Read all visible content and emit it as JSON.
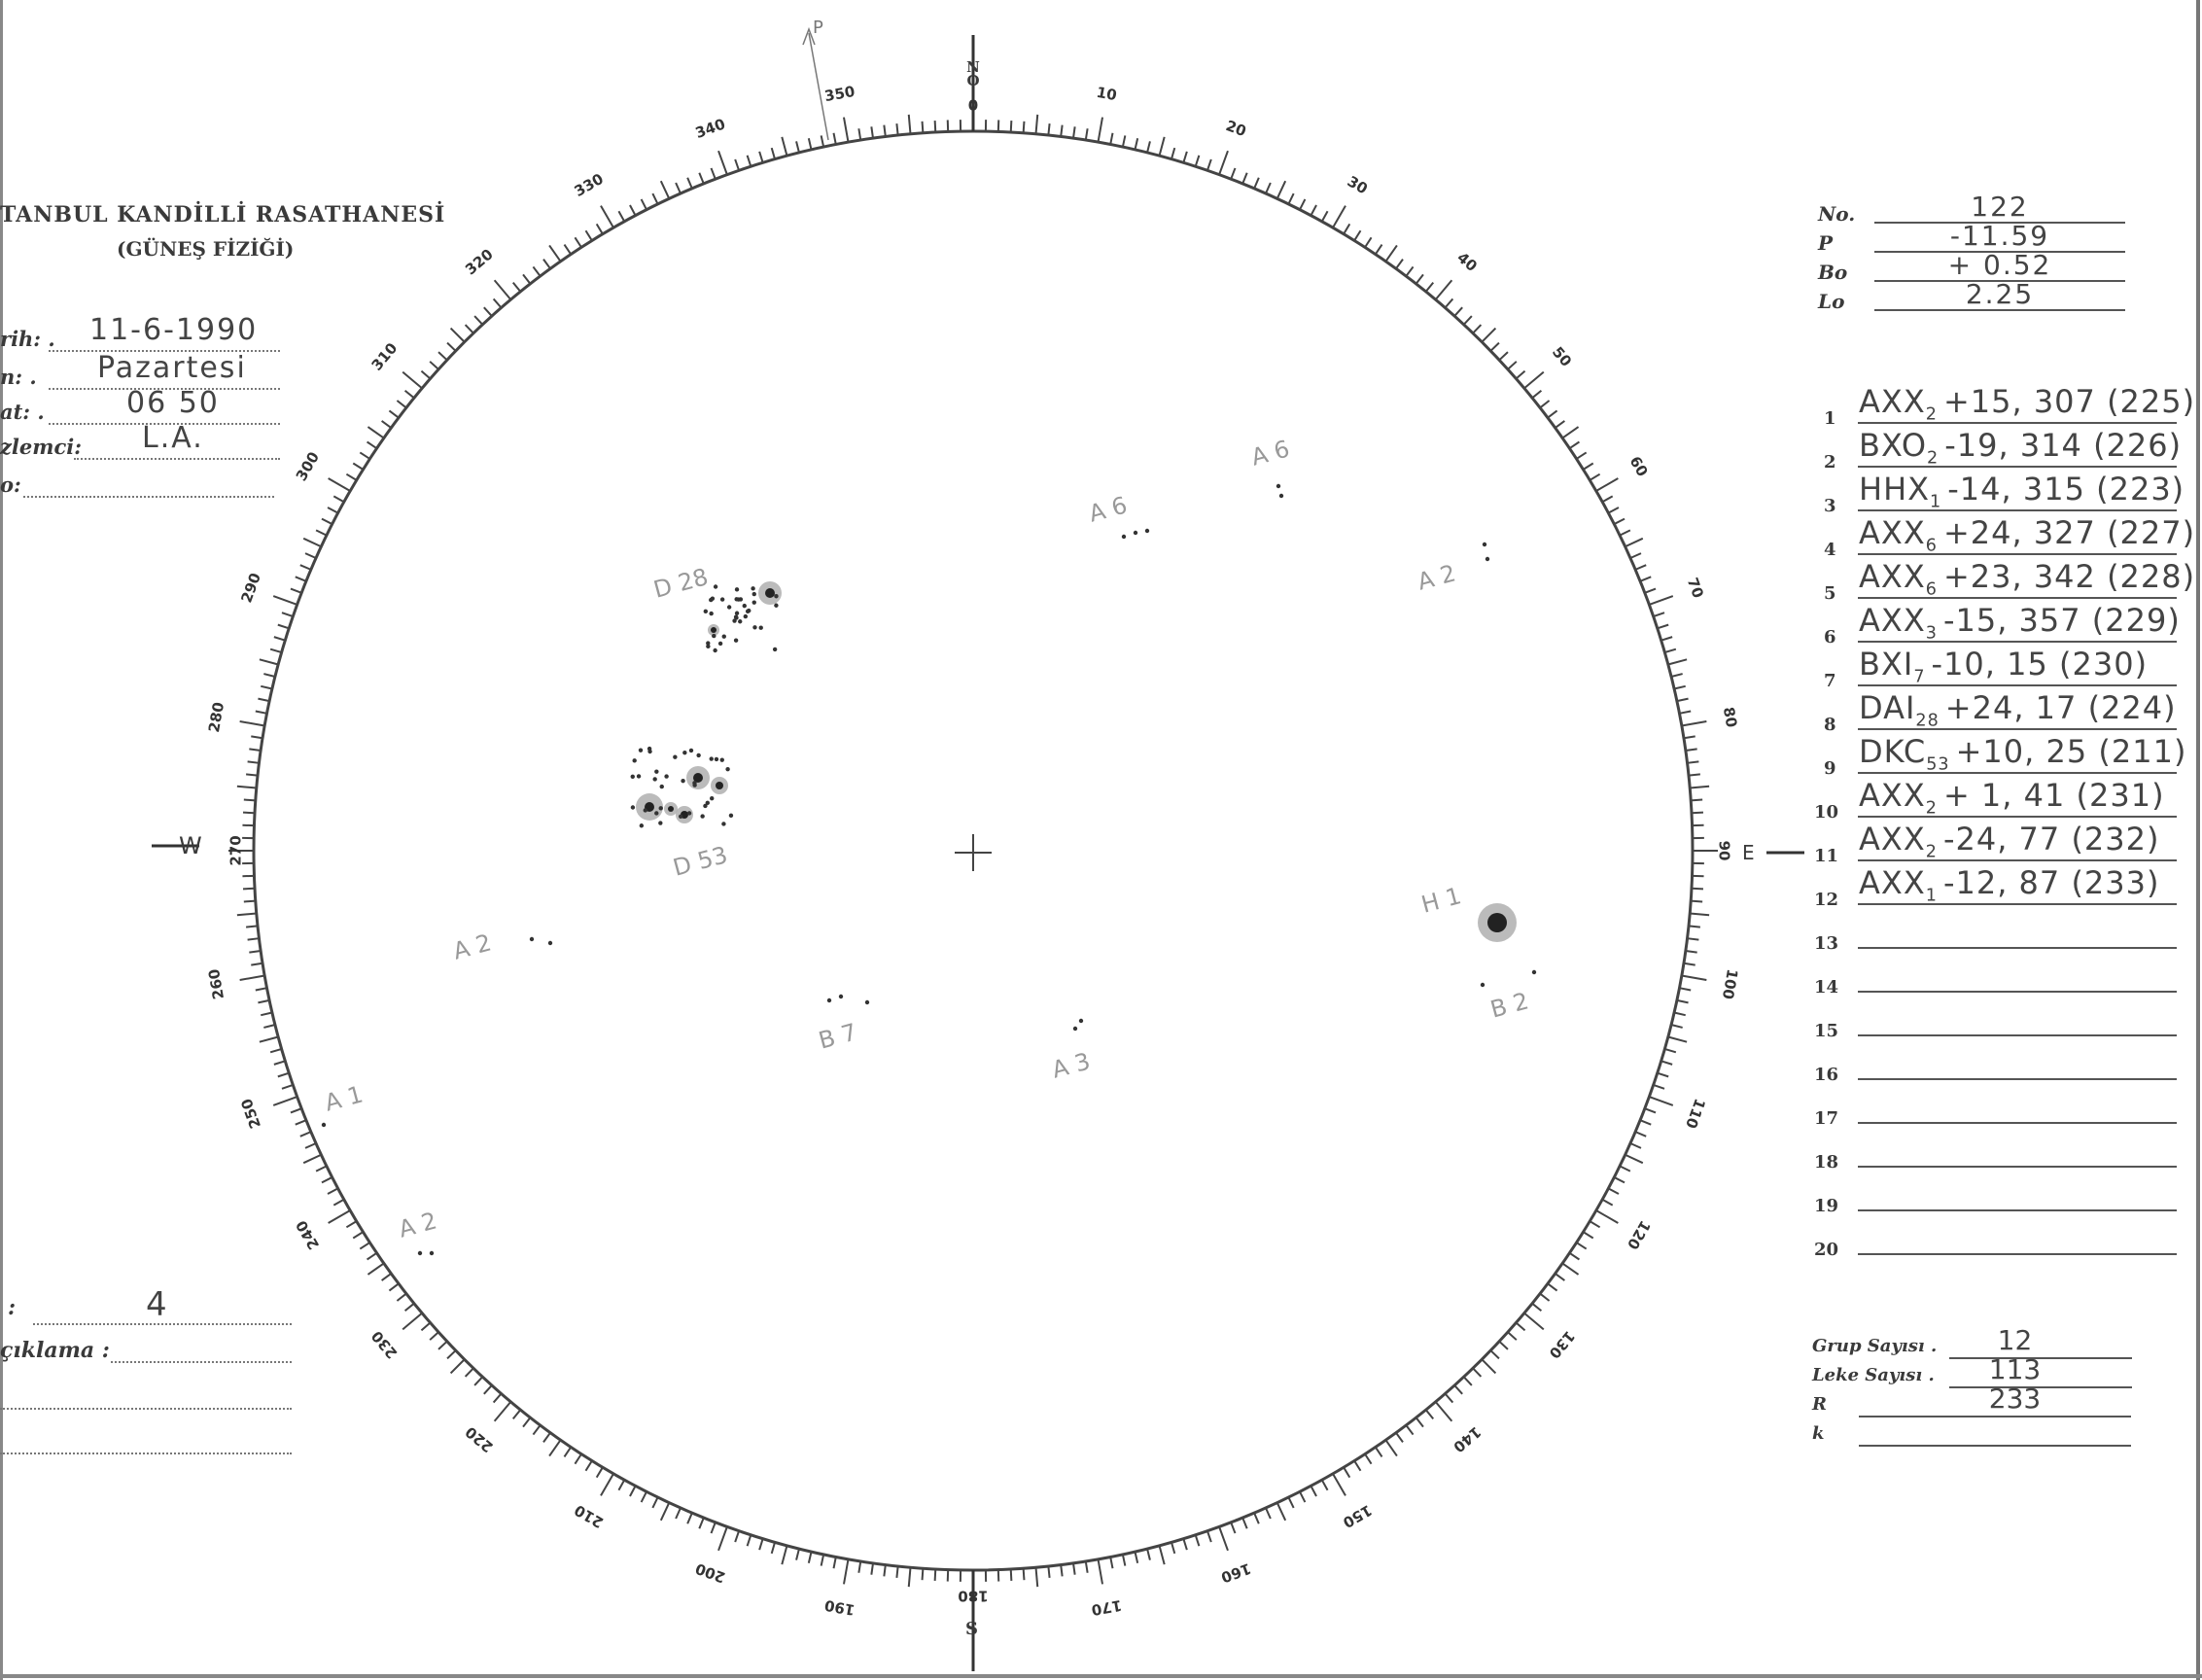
{
  "header": {
    "institution": "TANBUL KANDİLLİ RASATHANESİ",
    "department": "(GÜNEŞ FİZİĞİ)"
  },
  "fields": [
    {
      "label": "rih: .",
      "value": "11-6-1990"
    },
    {
      "label": "n: .",
      "value": "Pazartesi"
    },
    {
      "label": "at: .",
      "value": "06 50"
    },
    {
      "label": "zlemci:",
      "value": "L.A."
    },
    {
      "label": "o:",
      "value": ""
    }
  ],
  "bottom_left": {
    "field1_label": ":",
    "field1_value": "4",
    "field2_label": "çıklama :"
  },
  "params": [
    {
      "label": "No.",
      "value": "122"
    },
    {
      "label": "P",
      "value": "-11.59"
    },
    {
      "label": "Bo",
      "value": "+ 0.52"
    },
    {
      "label": "Lo",
      "value": "2.25"
    }
  ],
  "groups": [
    {
      "n": "1",
      "cls": "AXX",
      "sub": "2",
      "rest": "+15, 307 (225)"
    },
    {
      "n": "2",
      "cls": "BXO",
      "sub": "2",
      "rest": "-19, 314 (226)"
    },
    {
      "n": "3",
      "cls": "HHX",
      "sub": "1",
      "rest": "-14, 315 (223)"
    },
    {
      "n": "4",
      "cls": "AXX",
      "sub": "6",
      "rest": "+24, 327 (227)"
    },
    {
      "n": "5",
      "cls": "AXX",
      "sub": "6",
      "rest": "+23, 342 (228)"
    },
    {
      "n": "6",
      "cls": "AXX",
      "sub": "3",
      "rest": "-15, 357 (229)"
    },
    {
      "n": "7",
      "cls": "BXI",
      "sub": "7",
      "rest": "-10, 15 (230)"
    },
    {
      "n": "8",
      "cls": "DAI",
      "sub": "28",
      "rest": "+24, 17 (224)"
    },
    {
      "n": "9",
      "cls": "DKC",
      "sub": "53",
      "rest": "+10, 25 (211)"
    },
    {
      "n": "10",
      "cls": "AXX",
      "sub": "2",
      "rest": "+ 1, 41 (231)"
    },
    {
      "n": "11",
      "cls": "AXX",
      "sub": "2",
      "rest": "-24, 77 (232)"
    },
    {
      "n": "12",
      "cls": "AXX",
      "sub": "1",
      "rest": "-12, 87 (233)"
    },
    {
      "n": "13",
      "cls": "",
      "sub": "",
      "rest": ""
    },
    {
      "n": "14",
      "cls": "",
      "sub": "",
      "rest": ""
    },
    {
      "n": "15",
      "cls": "",
      "sub": "",
      "rest": ""
    },
    {
      "n": "16",
      "cls": "",
      "sub": "",
      "rest": ""
    },
    {
      "n": "17",
      "cls": "",
      "sub": "",
      "rest": ""
    },
    {
      "n": "18",
      "cls": "",
      "sub": "",
      "rest": ""
    },
    {
      "n": "19",
      "cls": "",
      "sub": "",
      "rest": ""
    },
    {
      "n": "20",
      "cls": "",
      "sub": "",
      "rest": ""
    }
  ],
  "summary": [
    {
      "label": "Grup Sayısı .",
      "value": "12"
    },
    {
      "label": "Leke Sayısı .",
      "value": "113"
    },
    {
      "label": "R",
      "value": "233"
    },
    {
      "label": "k",
      "value": ""
    }
  ],
  "disk": {
    "north": "N",
    "north_zero": "O",
    "south": "S",
    "west": "W",
    "east": "E",
    "pole_mark": "P",
    "degree_labels": [
      "0",
      "10",
      "20",
      "30",
      "40",
      "50",
      "60",
      "70",
      "80",
      "90",
      "100",
      "110",
      "120",
      "130",
      "140",
      "150",
      "160",
      "170",
      "180",
      "190",
      "200",
      "210",
      "220",
      "230",
      "240",
      "250",
      "260",
      "270",
      "280",
      "290",
      "300",
      "310",
      "320",
      "330",
      "340",
      "350"
    ],
    "group_labels": [
      "D 28",
      "D 53",
      "A 6",
      "A 6",
      "A 2",
      "H 1",
      "B 2",
      "A 3",
      "B 7",
      "A 2",
      "A 1",
      "A 2"
    ]
  }
}
